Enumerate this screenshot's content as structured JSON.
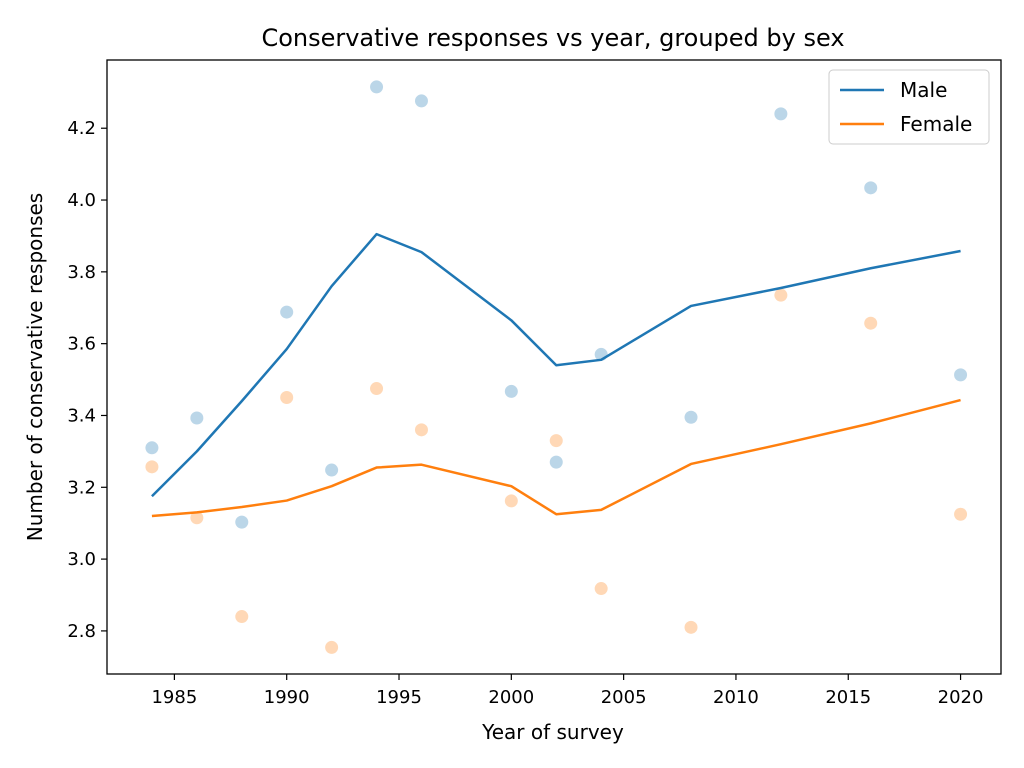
{
  "chart_data": {
    "type": "line",
    "title": "Conservative responses vs year, grouped by sex",
    "xlabel": "Year of survey",
    "ylabel": "Number of conservative responses",
    "xlim": [
      1982,
      2021.8
    ],
    "ylim": [
      2.68,
      4.39
    ],
    "xticks": [
      1985,
      1990,
      1995,
      2000,
      2005,
      2010,
      2015,
      2020
    ],
    "yticks": [
      2.8,
      3.0,
      3.2,
      3.4,
      3.6,
      3.8,
      4.0,
      4.2
    ],
    "grid": false,
    "legend_position": "top-right",
    "series": [
      {
        "name": "Male",
        "color": "#1f77b4",
        "line_x": [
          1984,
          1986,
          1988,
          1990,
          1992,
          1994,
          1996,
          2000,
          2002,
          2004,
          2008,
          2012,
          2016,
          2020
        ],
        "line_y": [
          3.175,
          3.3,
          3.44,
          3.585,
          3.76,
          3.905,
          3.855,
          3.665,
          3.54,
          3.555,
          3.705,
          3.755,
          3.81,
          3.858
        ],
        "points_x": [
          1984,
          1986,
          1988,
          1990,
          1992,
          1994,
          1996,
          2000,
          2002,
          2004,
          2008,
          2012,
          2016,
          2020
        ],
        "points_y": [
          3.31,
          3.393,
          3.103,
          3.688,
          3.248,
          4.315,
          4.276,
          3.467,
          3.27,
          3.57,
          3.395,
          4.24,
          4.034,
          3.513
        ]
      },
      {
        "name": "Female",
        "color": "#ff7f0e",
        "line_x": [
          1984,
          1986,
          1988,
          1990,
          1992,
          1994,
          1996,
          2000,
          2002,
          2004,
          2008,
          2012,
          2016,
          2020
        ],
        "line_y": [
          3.12,
          3.13,
          3.145,
          3.163,
          3.203,
          3.255,
          3.263,
          3.203,
          3.125,
          3.137,
          3.265,
          3.32,
          3.378,
          3.443
        ],
        "points_x": [
          1984,
          1986,
          1988,
          1990,
          1992,
          1994,
          1996,
          2000,
          2002,
          2004,
          2008,
          2012,
          2016,
          2020
        ],
        "points_y": [
          3.257,
          3.115,
          2.84,
          3.45,
          2.754,
          3.475,
          3.36,
          3.162,
          3.33,
          2.918,
          2.81,
          3.735,
          3.657,
          3.125
        ]
      }
    ]
  }
}
